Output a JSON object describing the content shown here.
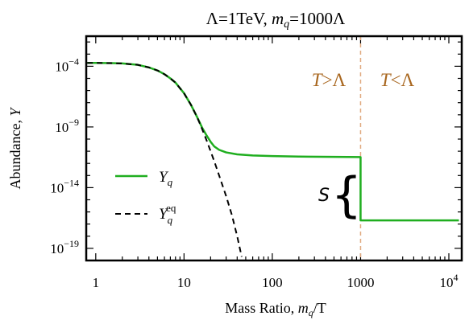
{
  "chart_data": {
    "type": "line",
    "title": "Λ=1TeV, m_q=1000Λ",
    "title_parts": {
      "lambda_part": "Λ=1TeV, ",
      "mq_m": "m",
      "mq_q": "q",
      "mq_rest": "=1000Λ"
    },
    "xlabel": "Mass Ratio, m_q/T",
    "xlabel_parts": {
      "pre": "Mass Ratio, ",
      "m": "m",
      "q": "q",
      "post": "/T"
    },
    "ylabel": "Abundance, Y",
    "ylabel_parts": {
      "pre": "Abundance, ",
      "y": "Y"
    },
    "x_scale": "log",
    "y_scale": "log",
    "xlim": [
      0.78,
      14000
    ],
    "ylim": [
      1e-20,
      0.03
    ],
    "x_ticks": [
      {
        "value": 1,
        "label": "1"
      },
      {
        "value": 10,
        "label": "10"
      },
      {
        "value": 100,
        "label": "100"
      },
      {
        "value": 1000,
        "label": "1000"
      },
      {
        "value": 10000,
        "label": "10^4"
      }
    ],
    "y_ticks": [
      {
        "value": 0.0001,
        "label": "10^-4"
      },
      {
        "value": 1e-09,
        "label": "10^-9"
      },
      {
        "value": 1e-14,
        "label": "10^-14"
      },
      {
        "value": 1e-19,
        "label": "10^-19"
      }
    ],
    "series": [
      {
        "name": "Y_q",
        "color": "#1fae1f",
        "style": "solid",
        "x": [
          0.8,
          1,
          1.5,
          2,
          3,
          4,
          5,
          6,
          7,
          8,
          10,
          12,
          14,
          16,
          18,
          20,
          22,
          25,
          30,
          40,
          60,
          100,
          200,
          500,
          1000,
          1000,
          2000,
          5000,
          13000
        ],
        "y": [
          0.00019,
          0.00019,
          0.00018,
          0.00017,
          0.00013,
          8e-05,
          4.5e-05,
          2.2e-05,
          1e-05,
          4.5e-06,
          6e-07,
          6.5e-08,
          7e-09,
          9e-10,
          2e-10,
          6e-11,
          2.5e-11,
          1.3e-11,
          8e-12,
          5.5e-12,
          4.5e-12,
          4e-12,
          3.6e-12,
          3.4e-12,
          3.3e-12,
          2e-17,
          2e-17,
          2e-17,
          2e-17
        ]
      },
      {
        "name": "Y_q^eq",
        "color": "#000000",
        "style": "dashed",
        "x": [
          0.8,
          1,
          1.5,
          2,
          3,
          4,
          5,
          6,
          7,
          8,
          10,
          12,
          14,
          16,
          18,
          20,
          22,
          25,
          30,
          35,
          40,
          45
        ],
        "y": [
          0.00019,
          0.00019,
          0.00018,
          0.00017,
          0.00013,
          8e-05,
          4.5e-05,
          2.2e-05,
          1e-05,
          4.5e-06,
          6e-07,
          6.5e-08,
          7e-09,
          7e-10,
          8e-11,
          1e-11,
          1.5e-12,
          1e-13,
          2e-15,
          5e-17,
          1e-18,
          2e-20
        ]
      }
    ],
    "legend": {
      "placement": "left-middle",
      "entries": [
        {
          "base": "Y",
          "sub": "q",
          "sup": ""
        },
        {
          "base": "Y",
          "sub": "q",
          "sup": "eq"
        }
      ]
    },
    "annotations": {
      "transition_x": 1000,
      "transition_color": "#e0aa80",
      "region_label_color": "#a8661e",
      "left_region": {
        "t": "T",
        "rest": ">Λ"
      },
      "right_region": {
        "t": "T",
        "rest": "<Λ"
      },
      "entropy_label": "S",
      "brace": "{"
    }
  }
}
